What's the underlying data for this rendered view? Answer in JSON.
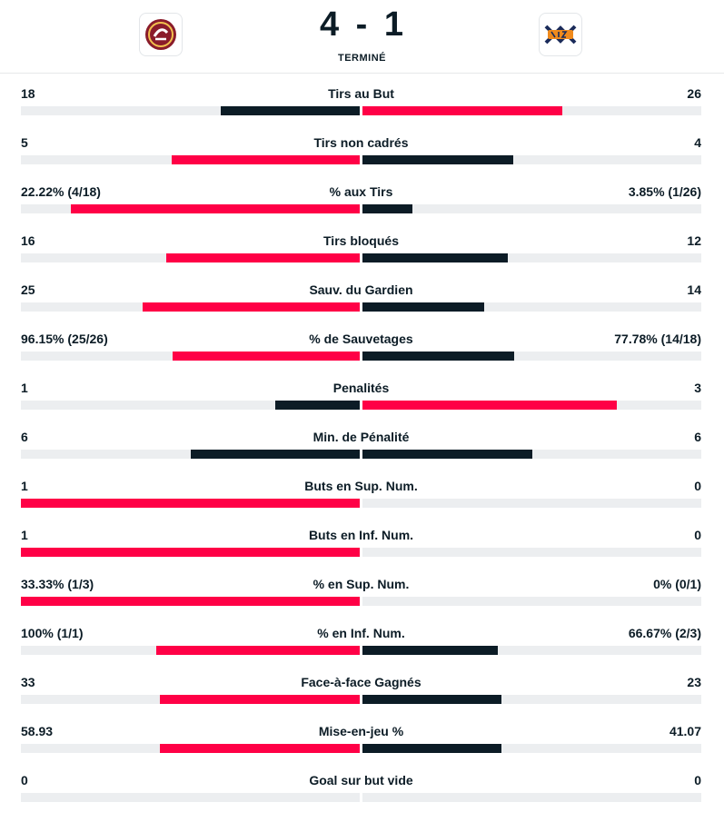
{
  "match": {
    "home_score": "4",
    "separator": "-",
    "away_score": "1",
    "status": "TERMINÉ",
    "home_logo_text": "GENEVE SERVETTE",
    "away_logo_text": "EVZ"
  },
  "colors": {
    "accent": "#ff0046",
    "dark": "#0c1c26",
    "track": "#eceef0"
  },
  "stats": [
    {
      "label": "Tirs au But",
      "home": "18",
      "away": "26",
      "home_pct": 40.9,
      "away_pct": 59.1,
      "winner": "away"
    },
    {
      "label": "Tirs non cadrés",
      "home": "5",
      "away": "4",
      "home_pct": 55.6,
      "away_pct": 44.4,
      "winner": "home"
    },
    {
      "label": "% aux Tirs",
      "home": "22.22% (4/18)",
      "away": "3.85% (1/26)",
      "home_pct": 85.2,
      "away_pct": 14.8,
      "winner": "home"
    },
    {
      "label": "Tirs bloqués",
      "home": "16",
      "away": "12",
      "home_pct": 57.1,
      "away_pct": 42.9,
      "winner": "home"
    },
    {
      "label": "Sauv. du Gardien",
      "home": "25",
      "away": "14",
      "home_pct": 64.1,
      "away_pct": 35.9,
      "winner": "home"
    },
    {
      "label": "% de Sauvetages",
      "home": "96.15% (25/26)",
      "away": "77.78% (14/18)",
      "home_pct": 55.3,
      "away_pct": 44.7,
      "winner": "home"
    },
    {
      "label": "Penalités",
      "home": "1",
      "away": "3",
      "home_pct": 25,
      "away_pct": 75,
      "winner": "away"
    },
    {
      "label": "Min. de Pénalité",
      "home": "6",
      "away": "6",
      "home_pct": 50,
      "away_pct": 50,
      "winner": "none"
    },
    {
      "label": "Buts en Sup. Num.",
      "home": "1",
      "away": "0",
      "home_pct": 100,
      "away_pct": 0,
      "winner": "home"
    },
    {
      "label": "Buts en Inf. Num.",
      "home": "1",
      "away": "0",
      "home_pct": 100,
      "away_pct": 0,
      "winner": "home"
    },
    {
      "label": "% en Sup. Num.",
      "home": "33.33% (1/3)",
      "away": "0% (0/1)",
      "home_pct": 100,
      "away_pct": 0,
      "winner": "home"
    },
    {
      "label": "% en Inf. Num.",
      "home": "100% (1/1)",
      "away": "66.67% (2/3)",
      "home_pct": 60,
      "away_pct": 40,
      "winner": "home"
    },
    {
      "label": "Face-à-face Gagnés",
      "home": "33",
      "away": "23",
      "home_pct": 58.9,
      "away_pct": 41.1,
      "winner": "home"
    },
    {
      "label": "Mise-en-jeu %",
      "home": "58.93",
      "away": "41.07",
      "home_pct": 58.9,
      "away_pct": 41.1,
      "winner": "home"
    },
    {
      "label": "Goal sur but vide",
      "home": "0",
      "away": "0",
      "home_pct": 0,
      "away_pct": 0,
      "winner": "none"
    }
  ]
}
